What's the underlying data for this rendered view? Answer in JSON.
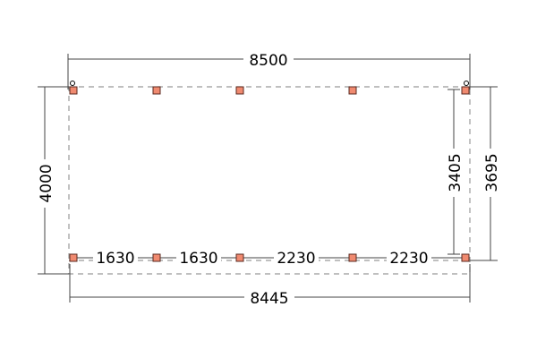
{
  "colors": {
    "post": "#f08a70",
    "outline": "#999999",
    "dimension": "#444444"
  },
  "dimensions": {
    "overall_top": "8500",
    "overall_bottom": "8445",
    "left_depth": "4000",
    "right_inner_depth": "3405",
    "right_outer_depth": "3695",
    "segments": [
      "1630",
      "1630",
      "2230",
      "2230"
    ]
  }
}
